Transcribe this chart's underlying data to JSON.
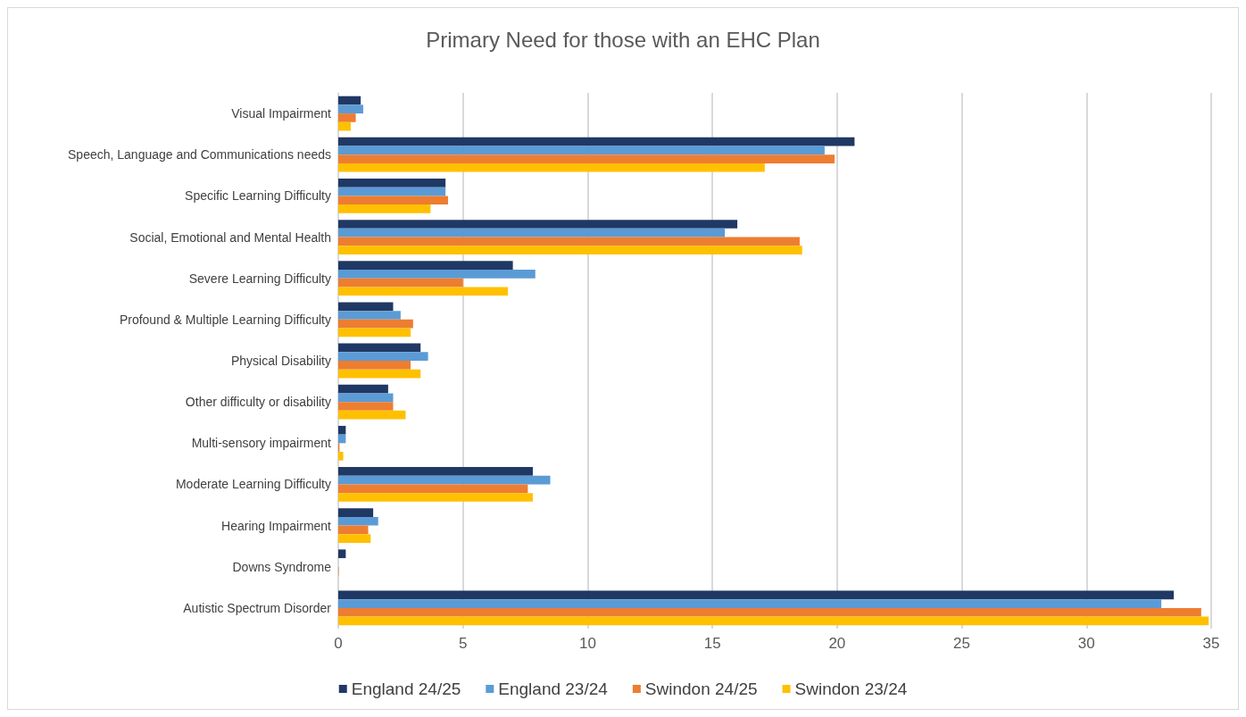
{
  "chart_data": {
    "type": "bar",
    "orientation": "horizontal",
    "title": "Primary Need for those with an EHC Plan",
    "categories": [
      "Visual Impairment",
      "Speech, Language and Communications needs",
      "Specific Learning Difficulty",
      "Social, Emotional and Mental Health",
      "Severe Learning Difficulty",
      "Profound & Multiple Learning Difficulty",
      "Physical Disability",
      "Other difficulty or disability",
      "Multi-sensory impairment",
      "Moderate Learning Difficulty",
      "Hearing Impairment",
      "Downs Syndrome",
      "Autistic Spectrum Disorder"
    ],
    "series": [
      {
        "name": "England 24/25",
        "color": "#203864",
        "values": [
          0.9,
          20.7,
          4.3,
          16.0,
          7.0,
          2.2,
          3.3,
          2.0,
          0.3,
          7.8,
          1.4,
          0.3,
          33.5
        ]
      },
      {
        "name": "England 23/24",
        "color": "#5b9bd5",
        "values": [
          1.0,
          19.5,
          4.3,
          15.5,
          7.9,
          2.5,
          3.6,
          2.2,
          0.3,
          8.5,
          1.6,
          0,
          33.0
        ]
      },
      {
        "name": "Swindon 24/25",
        "color": "#ed7d31",
        "values": [
          0.7,
          19.9,
          4.4,
          18.5,
          5.0,
          3.0,
          2.9,
          2.2,
          0.05,
          7.6,
          1.2,
          0.02,
          34.6
        ]
      },
      {
        "name": "Swindon 23/24",
        "color": "#ffc000",
        "values": [
          0.5,
          17.1,
          3.7,
          18.6,
          6.8,
          2.9,
          3.3,
          2.7,
          0.2,
          7.8,
          1.3,
          0,
          34.9
        ]
      }
    ],
    "xlim": [
      0,
      35
    ],
    "xticks": [
      0,
      5,
      10,
      15,
      20,
      25,
      30,
      35
    ],
    "grid": "x",
    "legend": "bottom"
  }
}
